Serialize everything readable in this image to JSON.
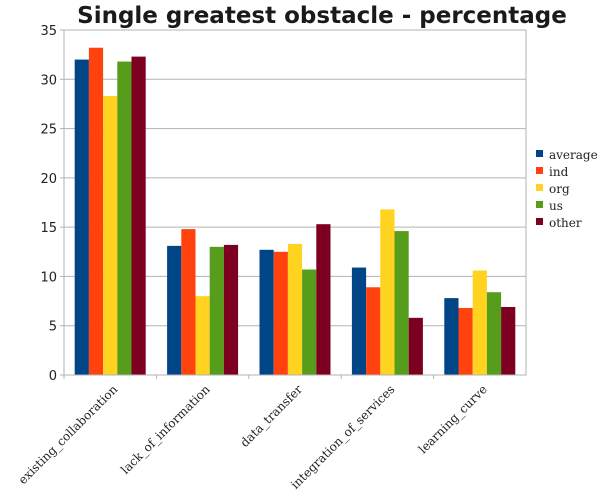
{
  "chart_data": {
    "type": "bar",
    "title": "Single greatest obstacle - percentage",
    "xlabel": "",
    "ylabel": "",
    "ylim": [
      0,
      35
    ],
    "yticks": [
      0,
      5,
      10,
      15,
      20,
      25,
      30,
      35
    ],
    "grid": true,
    "legend_position": "right",
    "categories": [
      "existing_collaboration",
      "lack_of_information",
      "data_transfer",
      "integration_of_services",
      "learning_curve"
    ],
    "series": [
      {
        "name": "average",
        "color": "#004586",
        "values": [
          32.0,
          13.1,
          12.7,
          10.9,
          7.8
        ]
      },
      {
        "name": "ind",
        "color": "#ff420e",
        "values": [
          33.2,
          14.8,
          12.5,
          8.9,
          6.8
        ]
      },
      {
        "name": "org",
        "color": "#ffd320",
        "values": [
          28.3,
          8.0,
          13.3,
          16.8,
          10.6
        ]
      },
      {
        "name": "us",
        "color": "#579d1c",
        "values": [
          31.8,
          13.0,
          10.7,
          14.6,
          8.4
        ]
      },
      {
        "name": "other",
        "color": "#7e0021",
        "values": [
          32.3,
          13.2,
          15.3,
          5.8,
          6.9
        ]
      }
    ]
  }
}
